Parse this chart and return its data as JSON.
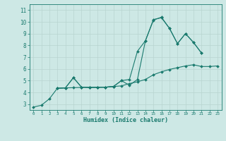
{
  "title": "",
  "xlabel": "Humidex (Indice chaleur)",
  "ylabel": "",
  "bg_color": "#cde8e5",
  "line_color": "#1a7a6e",
  "grid_color": "#b8d4d0",
  "xlim": [
    -0.5,
    23.5
  ],
  "ylim": [
    2.5,
    11.5
  ],
  "xticks": [
    0,
    1,
    2,
    3,
    4,
    5,
    6,
    7,
    8,
    9,
    10,
    11,
    12,
    13,
    14,
    15,
    16,
    17,
    18,
    19,
    20,
    21,
    22,
    23
  ],
  "yticks": [
    3,
    4,
    5,
    6,
    7,
    8,
    9,
    10,
    11
  ],
  "series": [
    {
      "x": [
        0,
        1,
        2,
        3,
        4,
        5,
        6,
        7,
        8,
        9,
        10,
        11,
        12,
        13,
        14,
        15,
        16,
        17,
        18,
        19,
        20,
        21,
        22,
        23
      ],
      "y": [
        2.75,
        2.9,
        3.45,
        4.35,
        4.38,
        4.4,
        4.42,
        4.42,
        4.43,
        4.44,
        4.5,
        4.55,
        4.75,
        4.9,
        5.1,
        5.5,
        5.75,
        5.95,
        6.1,
        6.25,
        6.35,
        6.2,
        6.2,
        6.25
      ]
    },
    {
      "x": [
        3,
        4,
        5,
        6,
        7,
        8,
        9,
        10,
        11,
        12,
        13,
        14,
        15,
        16,
        17,
        18,
        19,
        20,
        21
      ],
      "y": [
        4.35,
        4.38,
        5.25,
        4.45,
        4.42,
        4.43,
        4.44,
        4.5,
        5.0,
        5.1,
        7.5,
        8.4,
        10.2,
        10.35,
        9.45,
        8.15,
        9.0,
        8.25,
        7.35
      ]
    },
    {
      "x": [
        3,
        4,
        5,
        6,
        7,
        8,
        9,
        10,
        11,
        12,
        13,
        14,
        15,
        16,
        17,
        18,
        19,
        20,
        21
      ],
      "y": [
        4.35,
        4.38,
        5.25,
        4.45,
        4.42,
        4.43,
        4.44,
        4.5,
        5.0,
        4.6,
        5.1,
        8.4,
        10.15,
        10.4,
        9.45,
        8.15,
        9.0,
        8.25,
        7.35
      ]
    }
  ]
}
